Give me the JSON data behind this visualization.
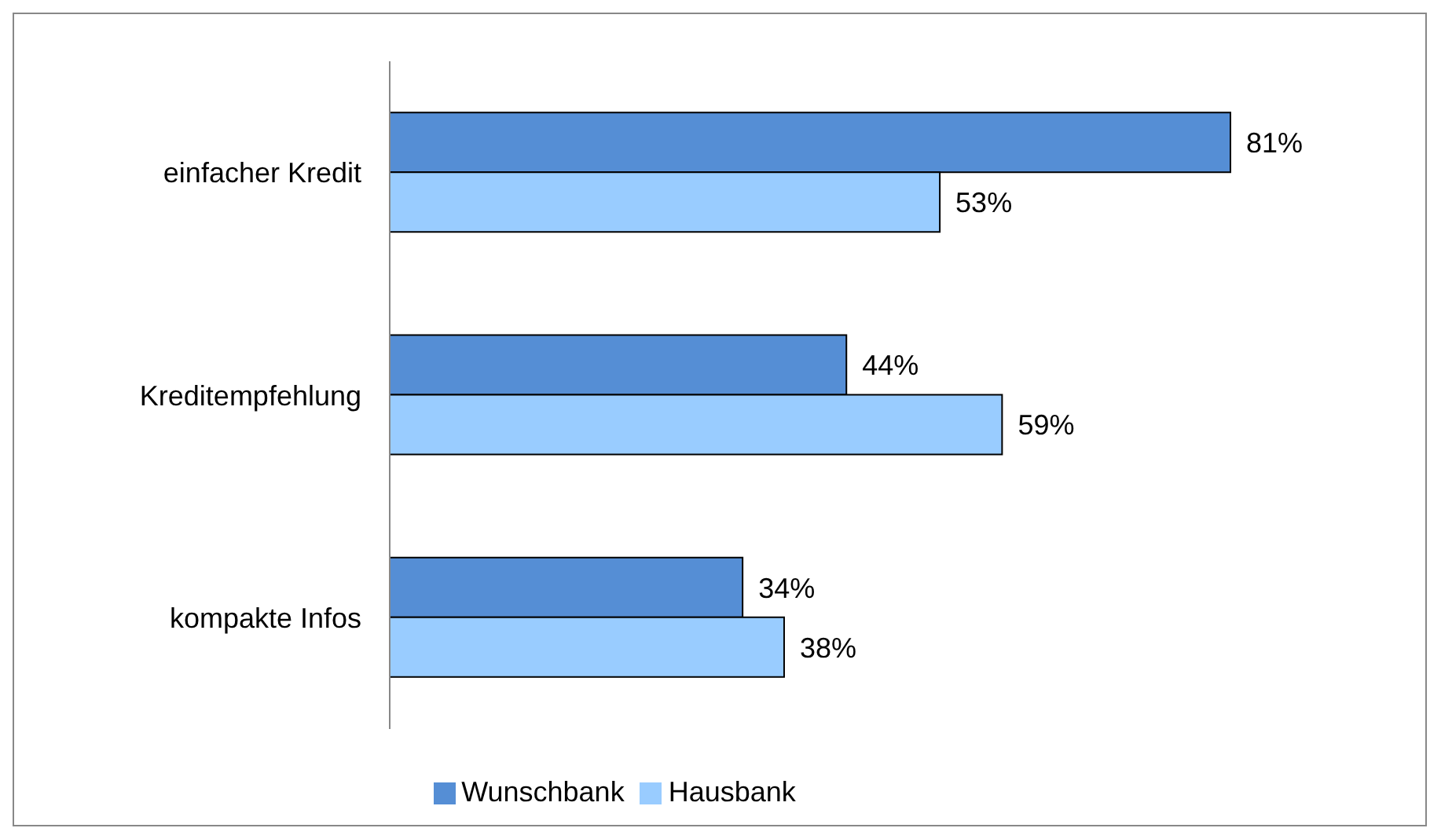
{
  "chart_data": {
    "type": "bar",
    "orientation": "horizontal",
    "categories": [
      "einfacher Kredit",
      "Kreditempfehlung",
      "kompakte Infos"
    ],
    "series": [
      {
        "name": "Wunschbank",
        "color": "#558ed5",
        "values": [
          81,
          44,
          34
        ],
        "value_labels": [
          "81%",
          "44%",
          "34%"
        ]
      },
      {
        "name": "Hausbank",
        "color": "#99ccff",
        "values": [
          53,
          59,
          38
        ],
        "value_labels": [
          "53%",
          "59%",
          "38%"
        ]
      }
    ],
    "legend": "bottom"
  }
}
